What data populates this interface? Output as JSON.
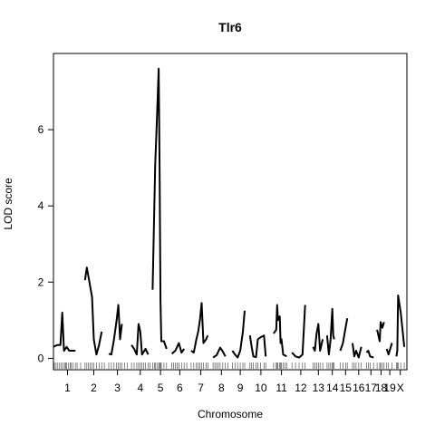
{
  "chart_data": {
    "type": "line",
    "title": "Tlr6",
    "xlabel": "Chromosome",
    "ylabel": "LOD score",
    "ylim": [
      -0.3,
      8.0
    ],
    "yticks": [
      0,
      2,
      4,
      6
    ],
    "grid": false,
    "chromosomes": [
      {
        "label": "1",
        "start": 0,
        "end": 32,
        "points": [
          [
            0,
            0.3
          ],
          [
            4,
            0.35
          ],
          [
            8,
            0.35
          ],
          [
            10,
            1.2
          ],
          [
            12,
            0.2
          ],
          [
            15,
            0.3
          ],
          [
            18,
            0.2
          ],
          [
            22,
            0.2
          ],
          [
            25,
            0.2
          ]
        ]
      },
      {
        "label": "2",
        "start": 32,
        "end": 60,
        "points": [
          [
            36,
            2.05
          ],
          [
            38,
            2.38
          ],
          [
            41,
            2.0
          ],
          [
            44,
            1.6
          ],
          [
            46,
            0.5
          ],
          [
            49,
            0.1
          ],
          [
            52,
            0.35
          ],
          [
            55,
            0.7
          ]
        ]
      },
      {
        "label": "3",
        "start": 60,
        "end": 86,
        "points": [
          [
            63,
            0.12
          ],
          [
            66,
            0.1
          ],
          [
            69,
            0.5
          ],
          [
            72,
            1.0
          ],
          [
            74,
            1.4
          ],
          [
            76,
            0.5
          ],
          [
            78,
            0.9
          ]
        ]
      },
      {
        "label": "4",
        "start": 86,
        "end": 112,
        "points": [
          [
            89,
            0.35
          ],
          [
            92,
            0.25
          ],
          [
            95,
            0.1
          ],
          [
            97,
            0.9
          ],
          [
            99,
            0.7
          ],
          [
            101,
            0.1
          ],
          [
            105,
            0.25
          ],
          [
            108,
            0.1
          ]
        ]
      },
      {
        "label": "5",
        "start": 112,
        "end": 132,
        "points": [
          [
            113,
            1.8
          ],
          [
            115,
            4.0
          ],
          [
            116,
            5.1
          ],
          [
            118,
            6.3
          ],
          [
            120,
            7.6
          ],
          [
            121,
            5.0
          ],
          [
            122,
            1.5
          ],
          [
            123,
            0.45
          ],
          [
            126,
            0.45
          ],
          [
            129,
            0.25
          ]
        ]
      },
      {
        "label": "6",
        "start": 132,
        "end": 156,
        "points": [
          [
            135,
            0.12
          ],
          [
            139,
            0.2
          ],
          [
            143,
            0.4
          ],
          [
            146,
            0.15
          ],
          [
            149,
            0.25
          ]
        ]
      },
      {
        "label": "7",
        "start": 156,
        "end": 180,
        "points": [
          [
            157,
            0.2
          ],
          [
            160,
            0.15
          ],
          [
            163,
            0.5
          ],
          [
            165,
            0.7
          ],
          [
            167,
            1.0
          ],
          [
            169,
            1.45
          ],
          [
            171,
            0.4
          ],
          [
            174,
            0.5
          ],
          [
            176,
            0.6
          ]
        ]
      },
      {
        "label": "8",
        "start": 180,
        "end": 203,
        "points": [
          [
            182,
            0.02
          ],
          [
            186,
            0.08
          ],
          [
            190,
            0.28
          ],
          [
            193,
            0.18
          ],
          [
            196,
            0.05
          ]
        ]
      },
      {
        "label": "9",
        "start": 203,
        "end": 223,
        "points": [
          [
            204,
            0.2
          ],
          [
            207,
            0.1
          ],
          [
            210,
            0.02
          ],
          [
            213,
            0.2
          ],
          [
            216,
            0.7
          ],
          [
            218,
            1.25
          ]
        ]
      },
      {
        "label": "10",
        "start": 223,
        "end": 250,
        "points": [
          [
            224,
            0.6
          ],
          [
            226,
            0.3
          ],
          [
            228,
            0.05
          ],
          [
            231,
            0.03
          ],
          [
            233,
            0.5
          ],
          [
            236,
            0.55
          ],
          [
            240,
            0.6
          ],
          [
            242,
            0.05
          ]
        ]
      },
      {
        "label": "11",
        "start": 250,
        "end": 270,
        "points": [
          [
            251,
            0.65
          ],
          [
            254,
            0.75
          ],
          [
            255,
            1.4
          ],
          [
            256,
            1.0
          ],
          [
            258,
            1.1
          ],
          [
            259,
            0.4
          ],
          [
            260,
            0.5
          ],
          [
            262,
            0.1
          ],
          [
            266,
            0.05
          ]
        ]
      },
      {
        "label": "12",
        "start": 270,
        "end": 294,
        "points": [
          [
            272,
            0.15
          ],
          [
            276,
            0.05
          ],
          [
            280,
            0.02
          ],
          [
            284,
            0.1
          ],
          [
            287,
            1.4
          ]
        ]
      },
      {
        "label": "13",
        "start": 294,
        "end": 310,
        "points": [
          [
            296,
            0.3
          ],
          [
            298,
            0.2
          ],
          [
            300,
            0.65
          ],
          [
            302,
            0.9
          ],
          [
            304,
            0.2
          ],
          [
            307,
            0.5
          ]
        ]
      },
      {
        "label": "14",
        "start": 310,
        "end": 326,
        "points": [
          [
            312,
            0.6
          ],
          [
            314,
            0.1
          ],
          [
            316,
            0.5
          ],
          [
            318,
            1.3
          ],
          [
            319,
            0.6
          ],
          [
            320,
            0.5
          ]
        ]
      },
      {
        "label": "15",
        "start": 326,
        "end": 340,
        "points": [
          [
            327,
            0.2
          ],
          [
            330,
            0.4
          ],
          [
            333,
            0.8
          ],
          [
            335,
            1.05
          ]
        ]
      },
      {
        "label": "16",
        "start": 340,
        "end": 356,
        "points": [
          [
            341,
            0.4
          ],
          [
            343,
            0.05
          ],
          [
            345,
            0.2
          ],
          [
            348,
            0.02
          ],
          [
            351,
            0.3
          ]
        ]
      },
      {
        "label": "17",
        "start": 356,
        "end": 368,
        "points": [
          [
            357,
            0.15
          ],
          [
            359,
            0.2
          ],
          [
            361,
            0.05
          ],
          [
            365,
            0.02
          ]
        ]
      },
      {
        "label": "18",
        "start": 368,
        "end": 379,
        "points": [
          [
            369,
            0.75
          ],
          [
            372,
            0.45
          ],
          [
            373,
            0.95
          ],
          [
            375,
            0.8
          ],
          [
            377,
            0.95
          ]
        ]
      },
      {
        "label": "19",
        "start": 379,
        "end": 388,
        "points": [
          [
            380,
            0.25
          ],
          [
            382,
            0.1
          ],
          [
            386,
            0.4
          ]
        ]
      },
      {
        "label": "X",
        "start": 388,
        "end": 403,
        "points": [
          [
            391,
            0.05
          ],
          [
            392,
            0.2
          ],
          [
            393,
            1.65
          ],
          [
            396,
            1.2
          ],
          [
            400,
            0.3
          ]
        ]
      }
    ],
    "markers": [
      1,
      3,
      5,
      7,
      9,
      11,
      13,
      14,
      15,
      17,
      19,
      20,
      22,
      25,
      27,
      31,
      36,
      38,
      40,
      42,
      44,
      46,
      49,
      52,
      55,
      58,
      63,
      66,
      69,
      72,
      74,
      76,
      78,
      81,
      84,
      89,
      92,
      95,
      97,
      99,
      101,
      103,
      105,
      108,
      110,
      113,
      115,
      116,
      118,
      120,
      121,
      122,
      123,
      126,
      129,
      135,
      137,
      139,
      141,
      143,
      146,
      149,
      152,
      157,
      160,
      163,
      165,
      167,
      169,
      171,
      174,
      176,
      182,
      184,
      186,
      188,
      190,
      193,
      196,
      199,
      204,
      207,
      210,
      213,
      216,
      218,
      224,
      226,
      228,
      231,
      233,
      236,
      240,
      242,
      251,
      254,
      255,
      256,
      258,
      259,
      260,
      262,
      264,
      266,
      272,
      276,
      280,
      284,
      287,
      296,
      298,
      300,
      302,
      304,
      307,
      312,
      314,
      316,
      318,
      319,
      320,
      327,
      330,
      333,
      335,
      341,
      343,
      345,
      348,
      351,
      357,
      359,
      361,
      365,
      369,
      372,
      373,
      375,
      377,
      380,
      382,
      386,
      391,
      392,
      393,
      396,
      400
    ]
  }
}
